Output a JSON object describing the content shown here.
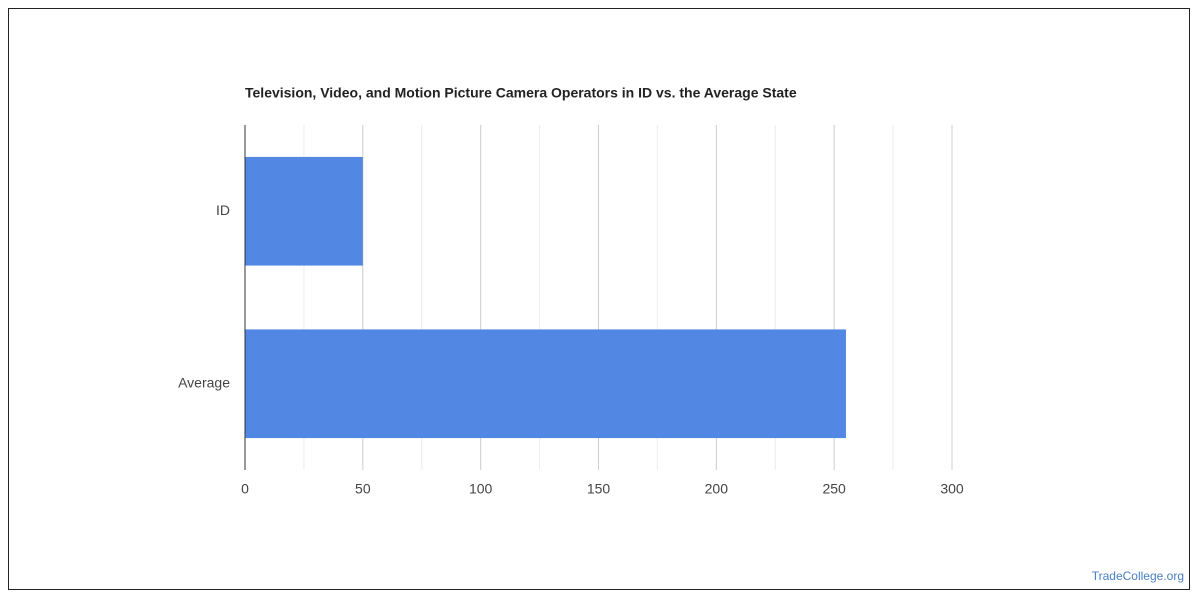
{
  "chart_data": {
    "type": "bar",
    "orientation": "horizontal",
    "title": "Television, Video, and Motion Picture Camera Operators in ID vs. the Average State",
    "categories": [
      "ID",
      "Average"
    ],
    "values": [
      50,
      255
    ],
    "color": "#5387e4",
    "xlim": [
      0,
      300
    ],
    "xticks": [
      0,
      50,
      100,
      150,
      200,
      250,
      300
    ],
    "minor_xticks": [
      25,
      75,
      125,
      175,
      225,
      275
    ],
    "grid": true,
    "watermark": "TradeCollege.org"
  }
}
